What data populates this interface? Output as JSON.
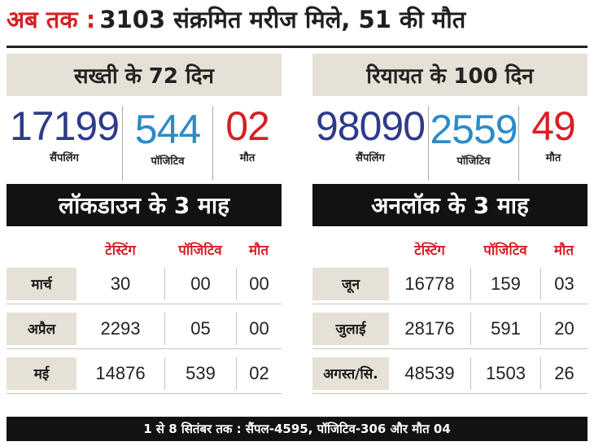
{
  "headline": {
    "prefix": "अब तक :",
    "text": "3103 संक्रमित मरीज मिले, 51 की मौत"
  },
  "left": {
    "title": "सख्ती के 72 दिन",
    "stats": [
      {
        "value": "17199",
        "label": "सैंपलिंग"
      },
      {
        "value": "544",
        "label": "पॉजिटिव"
      },
      {
        "value": "02",
        "label": "मौत"
      }
    ],
    "bar_title": "लॉकडाउन के 3 माह",
    "headers": [
      "टेस्टिंग",
      "पॉजिटिव",
      "मौत"
    ],
    "rows": [
      {
        "month": "मार्च",
        "testing": "30",
        "positive": "00",
        "deaths": "00"
      },
      {
        "month": "अप्रैल",
        "testing": "2293",
        "positive": "05",
        "deaths": "00"
      },
      {
        "month": "मई",
        "testing": "14876",
        "positive": "539",
        "deaths": "02"
      }
    ]
  },
  "right": {
    "title": "रियायत के 100 दिन",
    "stats": [
      {
        "value": "98090",
        "label": "सैंपलिंग"
      },
      {
        "value": "2559",
        "label": "पॉजिटिव"
      },
      {
        "value": "49",
        "label": "मौत"
      }
    ],
    "bar_title": "अनलॉक के 3 माह",
    "headers": [
      "टेस्टिंग",
      "पॉजिटिव",
      "मौत"
    ],
    "rows": [
      {
        "month": "जून",
        "testing": "16778",
        "positive": "159",
        "deaths": "03"
      },
      {
        "month": "जुलाई",
        "testing": "28176",
        "positive": "591",
        "deaths": "20"
      },
      {
        "month": "अगस्त/सि.",
        "testing": "48539",
        "positive": "1503",
        "deaths": "26"
      }
    ]
  },
  "footer": "1 से 8 सितंबर तक : सैंपल-4595, पॉजिटिव-306 और मौत 04",
  "colors": {
    "accent_red": "#d71f26",
    "navy": "#2e3b8a",
    "blue": "#2a8cc9",
    "panel": "#e6e1d6",
    "bar": "#121212"
  }
}
